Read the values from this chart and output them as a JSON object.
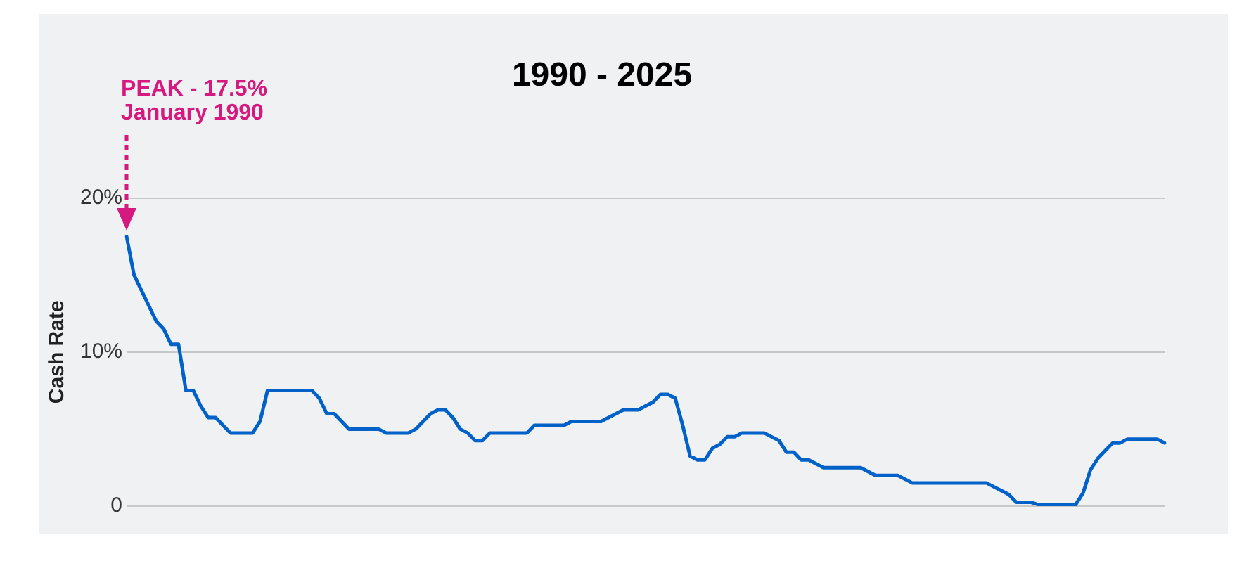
{
  "chart_data": {
    "type": "line",
    "title": "1990 - 2025",
    "ylabel": "Cash Rate",
    "categories": [
      null,
      null,
      null,
      null,
      null,
      null,
      null,
      null,
      null,
      null,
      null,
      null,
      null,
      null,
      null,
      null,
      null,
      null,
      null,
      null,
      null,
      null,
      null,
      null,
      null,
      null,
      null,
      null,
      null,
      null,
      null,
      null,
      null,
      null,
      null,
      null,
      null,
      null,
      null,
      null,
      null,
      null,
      null,
      null,
      null,
      null,
      null,
      null,
      null,
      null,
      null,
      null,
      null,
      null,
      null,
      null,
      null,
      null,
      null,
      null,
      null,
      null,
      null,
      null,
      null,
      null,
      null,
      null,
      null,
      null,
      null,
      null,
      null,
      null,
      null,
      null,
      null,
      null,
      null,
      null,
      null,
      null,
      null,
      null,
      null,
      null,
      null,
      null,
      null,
      null,
      null,
      null,
      null,
      null,
      null,
      null,
      null,
      null,
      null,
      null,
      null,
      null,
      null,
      null,
      null,
      null,
      null,
      null,
      null,
      null,
      null,
      null,
      null,
      null,
      null,
      null,
      null,
      null,
      null,
      null,
      null,
      null,
      null,
      null,
      null,
      null,
      null,
      null,
      null,
      null,
      null,
      null,
      null,
      null,
      null,
      null,
      null,
      null,
      null,
      null,
      null
    ],
    "series": [
      {
        "color": "#0061c8",
        "values": [
          17.5,
          15,
          14,
          13,
          12,
          11.5,
          10.5,
          10.5,
          7.5,
          7.5,
          6.5,
          5.75,
          5.75,
          5.25,
          4.75,
          4.75,
          4.75,
          4.75,
          5.5,
          7.5,
          7.5,
          7.5,
          7.5,
          7.5,
          7.5,
          7.5,
          7,
          6,
          6,
          5.5,
          5,
          5,
          5,
          5,
          5,
          4.75,
          4.75,
          4.75,
          4.75,
          5,
          5.5,
          6,
          6.25,
          6.25,
          5.75,
          5,
          4.75,
          4.25,
          4.25,
          4.75,
          4.75,
          4.75,
          4.75,
          4.75,
          4.75,
          5.25,
          5.25,
          5.25,
          5.25,
          5.25,
          5.5,
          5.5,
          5.5,
          5.5,
          5.5,
          5.75,
          6,
          6.25,
          6.25,
          6.25,
          6.5,
          6.75,
          7.25,
          7.25,
          7,
          5.25,
          3.25,
          3,
          3,
          3.75,
          4,
          4.5,
          4.5,
          4.75,
          4.75,
          4.75,
          4.75,
          4.5,
          4.25,
          3.5,
          3.5,
          3,
          3,
          2.75,
          2.5,
          2.5,
          2.5,
          2.5,
          2.5,
          2.5,
          2.25,
          2,
          2,
          2,
          2,
          1.75,
          1.5,
          1.5,
          1.5,
          1.5,
          1.5,
          1.5,
          1.5,
          1.5,
          1.5,
          1.5,
          1.5,
          1.25,
          1,
          0.75,
          0.25,
          0.25,
          0.25,
          0.1,
          0.1,
          0.1,
          0.1,
          0.1,
          0.1,
          0.85,
          2.35,
          3.1,
          3.6,
          4.1,
          4.1,
          4.35,
          4.35,
          4.35,
          4.35,
          4.35,
          4.1
        ]
      }
    ],
    "ylim": [
      0,
      20
    ],
    "yticks": [
      {
        "value": 0,
        "label": "0"
      },
      {
        "value": 10,
        "label": "10%"
      },
      {
        "value": 20,
        "label": "20%"
      }
    ],
    "grid": "y",
    "tick_labels": "y",
    "legend": false,
    "marker": "none",
    "line_style": "solid",
    "annotations": [
      "PEAK - 17.5%\nJanuary 1990"
    ]
  }
}
